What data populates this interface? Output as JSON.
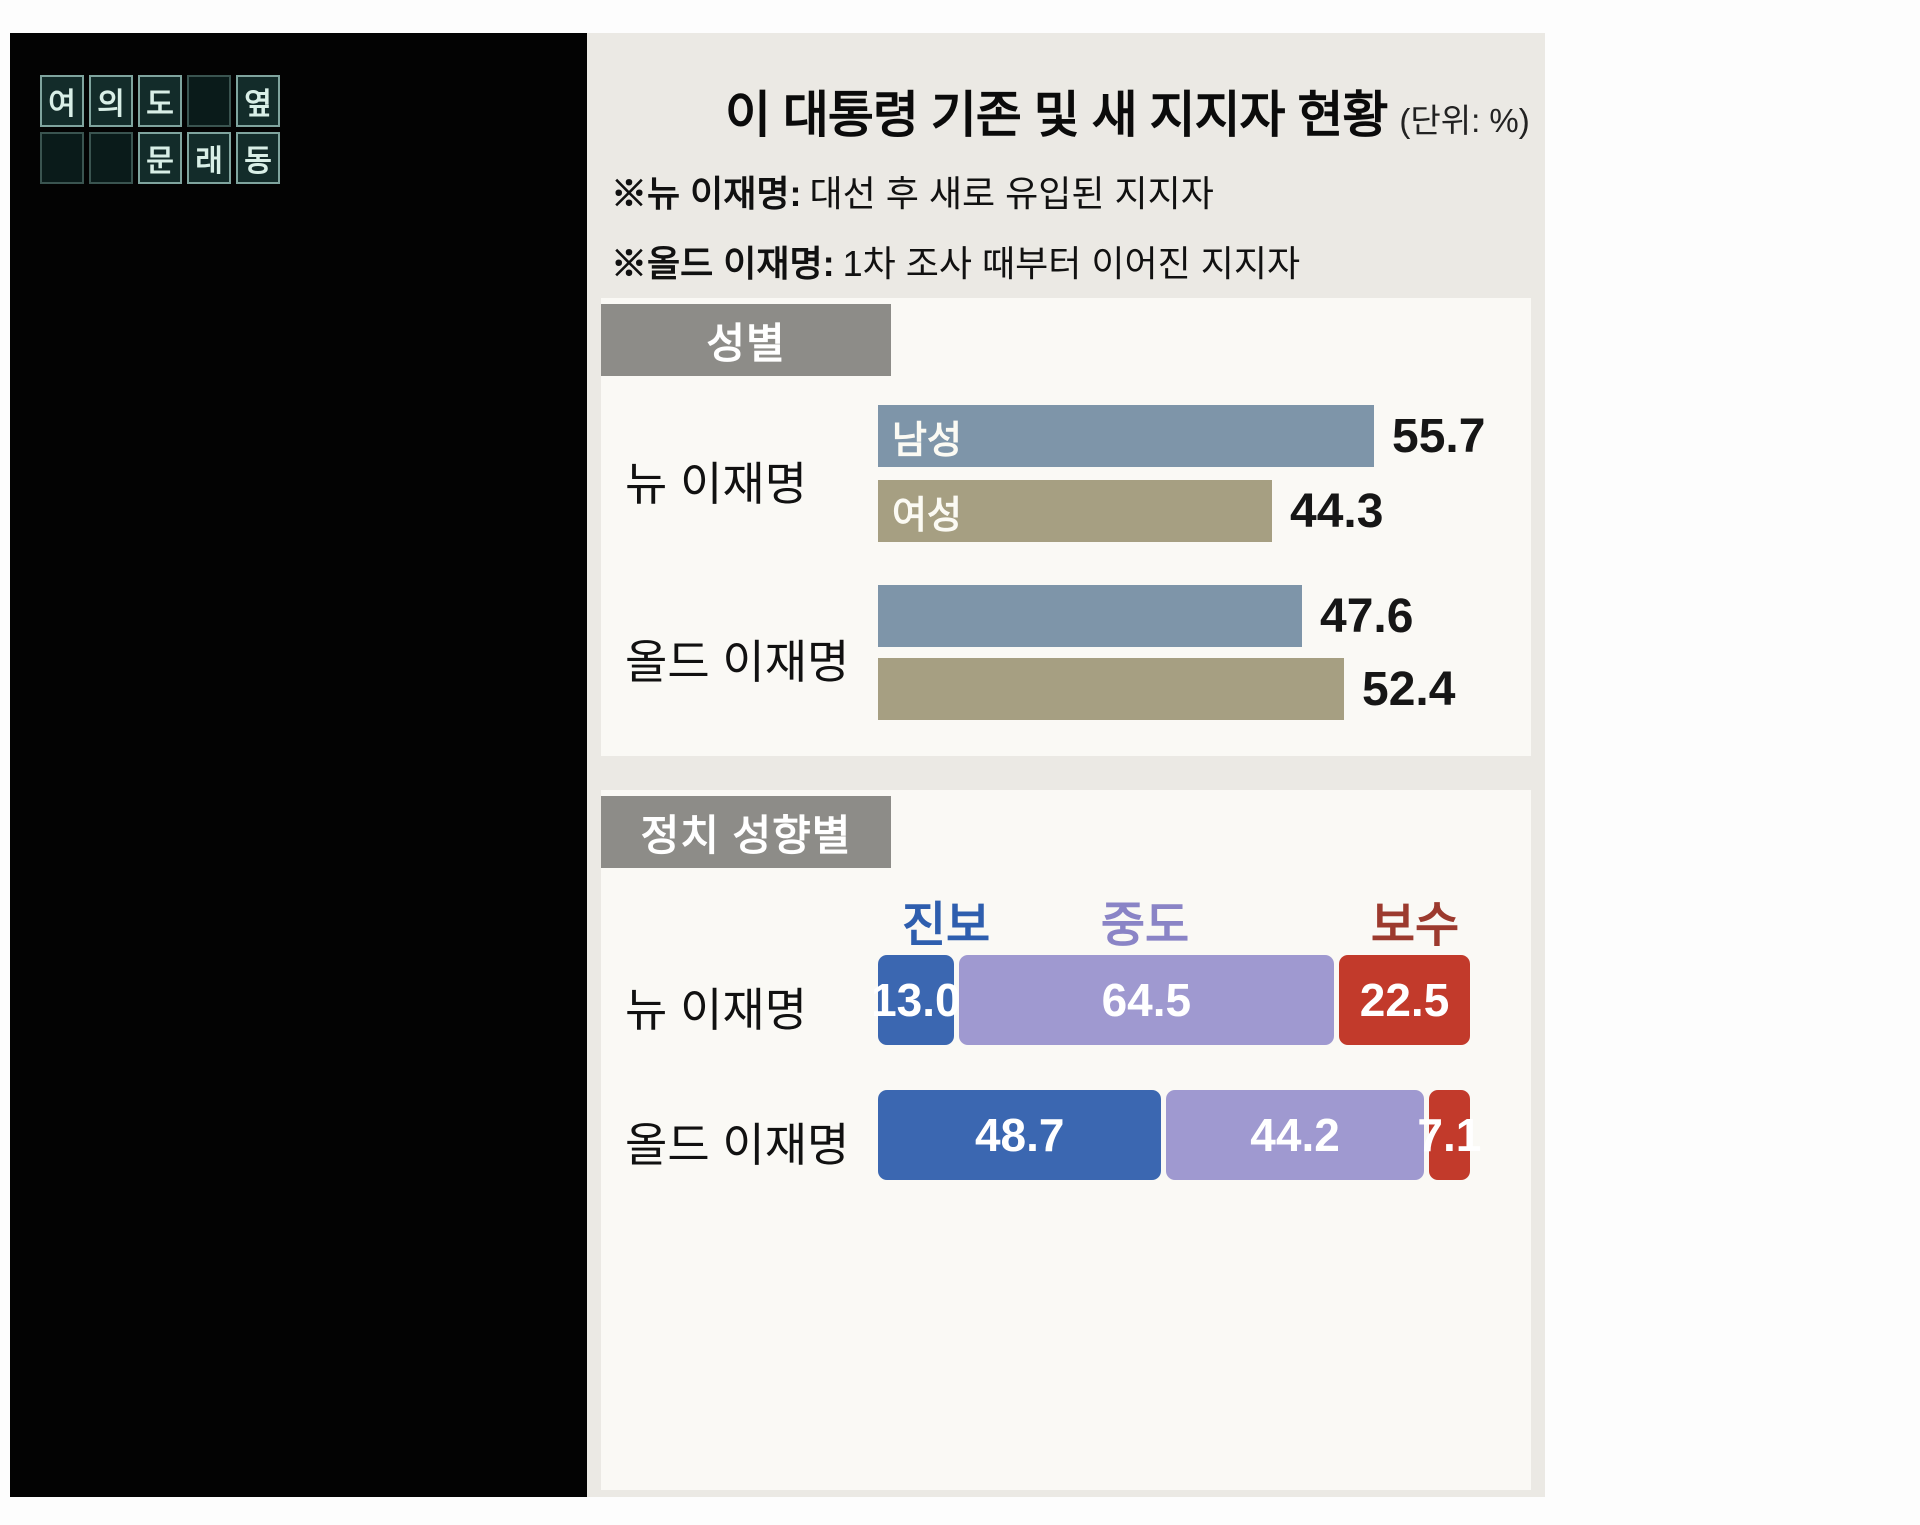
{
  "logo": {
    "tiles": [
      "여",
      "의",
      "도",
      "",
      "옆",
      "",
      "",
      "문",
      "래",
      "동"
    ]
  },
  "header": {
    "title": "이 대통령 기존 및 새 지지자 현황",
    "unit": "(단위: %)"
  },
  "notes": [
    {
      "prefix": "※뉴 이재명:",
      "text": "대선 후 새로 유입된 지지자"
    },
    {
      "prefix": "※올드 이재명:",
      "text": "1차 조사 때부터 이어진 지지자"
    }
  ],
  "chart_data": [
    {
      "type": "bar",
      "title": "성별",
      "unit": "%",
      "xlim": [
        0,
        60
      ],
      "groups": [
        {
          "label": "뉴 이재명",
          "bars": [
            {
              "category": "남성",
              "value": 55.7,
              "display": "55.7",
              "color": "#7e95a9"
            },
            {
              "category": "여성",
              "value": 44.3,
              "display": "44.3",
              "color": "#a69f82"
            }
          ]
        },
        {
          "label": "올드 이재명",
          "bars": [
            {
              "category": "남성",
              "value": 47.6,
              "display": "47.6",
              "color": "#7e95a9"
            },
            {
              "category": "여성",
              "value": 52.4,
              "display": "52.4",
              "color": "#a69f82"
            }
          ]
        }
      ]
    },
    {
      "type": "stacked-bar",
      "title": "정치 성향별",
      "unit": "%",
      "categories": [
        "진보",
        "중도",
        "보수"
      ],
      "category_colors": [
        "#2e5eae",
        "#8a84c6",
        "#9c3a2e"
      ],
      "segment_colors": [
        "#3b67b1",
        "#9f99d0",
        "#c23a2b"
      ],
      "groups": [
        {
          "label": "뉴 이재명",
          "values": [
            13.0,
            64.5,
            22.5
          ],
          "displays": [
            "13.0",
            "64.5",
            "22.5"
          ]
        },
        {
          "label": "올드 이재명",
          "values": [
            48.7,
            44.2,
            7.1
          ],
          "displays": [
            "48.7",
            "44.2",
            "7.1"
          ]
        }
      ]
    }
  ]
}
